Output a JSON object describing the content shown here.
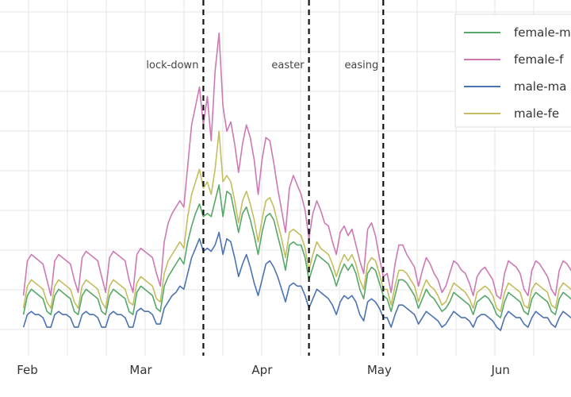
{
  "chart_data": {
    "type": "line",
    "title": "",
    "xlabel": "",
    "ylabel": "",
    "x_tick_labels": [
      {
        "label": "Feb",
        "day": 0
      },
      {
        "label": "Mar",
        "day": 29
      },
      {
        "label": "Apr",
        "day": 60
      },
      {
        "label": "May",
        "day": 90
      },
      {
        "label": "Jun",
        "day": 121
      }
    ],
    "x_range_days": [
      -7,
      139
    ],
    "y_range": [
      0,
      100
    ],
    "grid": true,
    "legend_position": "top-right",
    "events": [
      {
        "label": "lock-down",
        "day": 45
      },
      {
        "label": "easter",
        "day": 72
      },
      {
        "label": "easing",
        "day": 91
      }
    ],
    "series": [
      {
        "name": "female-m",
        "color": "#55a868",
        "values": [
          8,
          14,
          16,
          15,
          14,
          13,
          9,
          8,
          14,
          16,
          15,
          14,
          13,
          9,
          8,
          14,
          16,
          15,
          14,
          13,
          9,
          8,
          14,
          16,
          15,
          14,
          13,
          9,
          8,
          15,
          17,
          16,
          15,
          14,
          10,
          9,
          17,
          20,
          22,
          24,
          26,
          24,
          31,
          36,
          40,
          43,
          39,
          40,
          39,
          44,
          49,
          39,
          47,
          46,
          40,
          34,
          40,
          42,
          38,
          33,
          27,
          34,
          39,
          40,
          38,
          33,
          28,
          22,
          30,
          31,
          30,
          30,
          26,
          19,
          23,
          27,
          26,
          25,
          24,
          21,
          17,
          21,
          24,
          22,
          24,
          21,
          16,
          13,
          21,
          23,
          22,
          18,
          14,
          13,
          9,
          14,
          19,
          19,
          18,
          16,
          14,
          10,
          13,
          16,
          14,
          13,
          11,
          9,
          10,
          12,
          15,
          14,
          13,
          12,
          11,
          8,
          12,
          13,
          14,
          13,
          11,
          8,
          7,
          12,
          15,
          14,
          13,
          12,
          9,
          8,
          13,
          15,
          14,
          13,
          12,
          9,
          8,
          13,
          15,
          14,
          13,
          12,
          9
        ],
        "dashed": false
      },
      {
        "name": "female-f",
        "color": "#cc79b4",
        "values": [
          14,
          25,
          27,
          26,
          25,
          24,
          19,
          14,
          25,
          27,
          26,
          25,
          24,
          19,
          15,
          26,
          28,
          27,
          26,
          25,
          20,
          15,
          26,
          28,
          27,
          26,
          25,
          19,
          15,
          27,
          29,
          28,
          27,
          26,
          21,
          17,
          31,
          37,
          40,
          42,
          44,
          42,
          55,
          68,
          74,
          80,
          68,
          77,
          63,
          85,
          97,
          74,
          66,
          69,
          62,
          53,
          62,
          68,
          64,
          57,
          46,
          57,
          64,
          63,
          56,
          48,
          41,
          34,
          48,
          52,
          49,
          46,
          41,
          32,
          40,
          44,
          41,
          37,
          36,
          31,
          27,
          34,
          36,
          33,
          35,
          30,
          25,
          21,
          35,
          37,
          33,
          26,
          20,
          21,
          15,
          24,
          30,
          30,
          27,
          25,
          23,
          17,
          22,
          26,
          24,
          21,
          19,
          15,
          17,
          21,
          25,
          24,
          22,
          21,
          18,
          14,
          20,
          22,
          23,
          21,
          19,
          14,
          13,
          21,
          25,
          24,
          23,
          21,
          16,
          14,
          22,
          25,
          24,
          22,
          20,
          16,
          14,
          22,
          25,
          24,
          22,
          20,
          16
        ],
        "dashed": false
      },
      {
        "name": "male-ma",
        "color": "#4c72b0",
        "values": [
          4,
          8,
          9,
          8,
          8,
          7,
          4,
          4,
          8,
          9,
          8,
          8,
          7,
          4,
          4,
          8,
          9,
          8,
          8,
          7,
          4,
          4,
          8,
          9,
          8,
          8,
          7,
          4,
          4,
          9,
          10,
          9,
          9,
          8,
          5,
          5,
          10,
          12,
          14,
          15,
          17,
          16,
          21,
          26,
          29,
          32,
          28,
          29,
          28,
          30,
          34,
          27,
          32,
          31,
          26,
          20,
          24,
          27,
          23,
          18,
          14,
          19,
          24,
          25,
          23,
          20,
          16,
          12,
          17,
          18,
          17,
          17,
          14,
          10,
          13,
          16,
          15,
          14,
          13,
          11,
          8,
          12,
          14,
          13,
          14,
          12,
          8,
          6,
          12,
          13,
          12,
          10,
          7,
          7,
          4,
          8,
          11,
          11,
          10,
          9,
          8,
          5,
          7,
          9,
          8,
          7,
          6,
          4,
          5,
          7,
          9,
          8,
          7,
          7,
          6,
          4,
          7,
          8,
          8,
          7,
          6,
          4,
          3,
          7,
          9,
          8,
          7,
          7,
          5,
          4,
          7,
          9,
          8,
          7,
          7,
          5,
          4,
          7,
          9,
          8,
          7,
          7,
          5
        ],
        "dashed": false
      },
      {
        "name": "male-fe",
        "color": "#c4bd5e",
        "values": [
          10,
          17,
          19,
          18,
          17,
          16,
          12,
          10,
          17,
          19,
          18,
          17,
          16,
          12,
          10,
          17,
          19,
          18,
          17,
          16,
          12,
          10,
          17,
          19,
          18,
          17,
          16,
          12,
          11,
          18,
          20,
          19,
          18,
          17,
          13,
          12,
          21,
          25,
          27,
          29,
          31,
          29,
          39,
          46,
          50,
          54,
          48,
          50,
          46,
          54,
          66,
          50,
          52,
          50,
          44,
          37,
          44,
          47,
          43,
          38,
          31,
          38,
          44,
          45,
          42,
          37,
          32,
          26,
          34,
          35,
          34,
          33,
          29,
          22,
          27,
          31,
          29,
          28,
          27,
          24,
          20,
          24,
          27,
          25,
          27,
          24,
          19,
          16,
          24,
          26,
          25,
          21,
          16,
          16,
          11,
          17,
          22,
          22,
          21,
          19,
          17,
          12,
          16,
          19,
          17,
          16,
          14,
          11,
          12,
          15,
          18,
          17,
          16,
          15,
          13,
          10,
          15,
          16,
          17,
          16,
          14,
          10,
          9,
          15,
          18,
          17,
          16,
          15,
          11,
          10,
          16,
          18,
          17,
          16,
          15,
          11,
          10,
          16,
          18,
          17,
          16,
          15,
          11
        ],
        "dashed": false
      }
    ],
    "x_start_day": -1
  }
}
